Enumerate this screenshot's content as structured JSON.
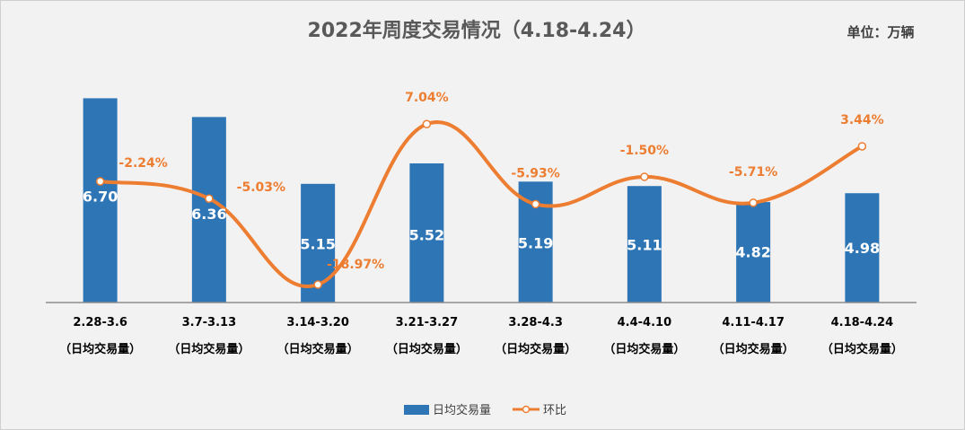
{
  "chart_data": {
    "type": "bar",
    "title": "2022年周度交易情况（4.18-4.24）",
    "unit_label": "单位：万辆",
    "categories": [
      "2.28-3.6",
      "3.7-3.13",
      "3.14-3.20",
      "3.21-3.27",
      "3.28-4.3",
      "4.4-4.10",
      "4.11-4.17",
      "4.18-4.24"
    ],
    "category_sublabel": "（日均交易量）",
    "series": [
      {
        "name": "日均交易量",
        "type": "bar",
        "color": "#2e75b6",
        "values": [
          6.7,
          6.36,
          5.15,
          5.52,
          5.19,
          5.11,
          4.82,
          4.98
        ],
        "labels": [
          "6.70",
          "6.36",
          "5.15",
          "5.52",
          "5.19",
          "5.11",
          "4.82",
          "4.98"
        ]
      },
      {
        "name": "环比",
        "type": "line",
        "color": "#ed7d31",
        "values": [
          -2.24,
          -5.03,
          -18.97,
          7.04,
          -5.93,
          -1.5,
          -5.71,
          3.44
        ],
        "labels": [
          "-2.24%",
          "-5.03%",
          "-18.97%",
          "7.04%",
          "-5.93%",
          "-1.50%",
          "-5.71%",
          "3.44%"
        ]
      }
    ],
    "bar_axis_range": [
      3.0,
      7.5
    ],
    "line_axis_range": [
      -21,
      11
    ],
    "grid": false,
    "legend_position": "bottom"
  }
}
